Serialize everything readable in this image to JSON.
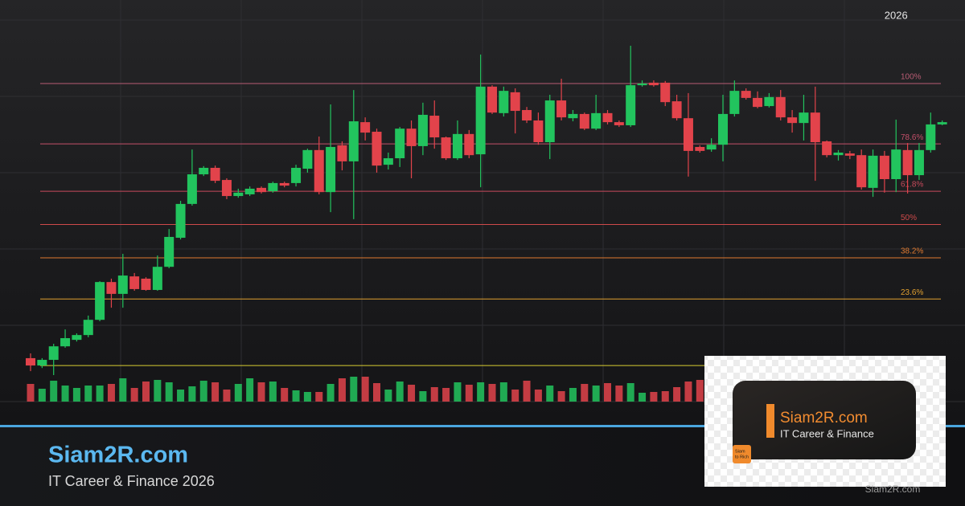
{
  "chart_data": {
    "type": "candlestick",
    "categories": [
      null,
      null,
      null,
      null,
      null,
      null,
      null,
      null,
      null,
      null,
      null,
      null,
      null,
      null,
      null,
      null,
      null,
      null,
      null,
      null,
      null,
      null,
      null,
      null,
      null,
      null,
      null,
      null,
      null,
      null,
      null,
      null,
      null,
      null,
      null,
      null,
      null,
      null,
      null,
      null,
      null,
      null,
      null,
      null,
      null,
      null,
      null,
      null,
      null,
      null,
      null,
      null,
      null,
      null,
      null,
      null,
      null,
      null,
      null,
      null,
      null,
      null,
      null,
      null,
      null,
      null,
      null,
      null,
      null,
      null,
      null,
      null,
      null,
      null,
      null,
      "2026",
      null,
      null,
      null,
      null
    ],
    "open": [
      2.6,
      0,
      2.0,
      6.8,
      9.1,
      10.8,
      16.2,
      29.6,
      25.4,
      31.6,
      30.8,
      26.8,
      35.0,
      45.3,
      57.3,
      67.8,
      70.1,
      65.8,
      60.1,
      60.7,
      63.0,
      61.8,
      64.7,
      64.7,
      69.8,
      76.4,
      61.5,
      78.1,
      72.4,
      86.3,
      82.9,
      71.2,
      73.5,
      84.0,
      77.8,
      88.6,
      80.9,
      73.5,
      82.1,
      74.9,
      98.9,
      89.5,
      96.9,
      90.6,
      86.9,
      79.2,
      94.0,
      87.7,
      89.2,
      84.0,
      89.5,
      86.3,
      85.2,
      99.4,
      100.3,
      100.3,
      93.7,
      87.7,
      77.5,
      76.6,
      78.3,
      89.2,
      97.4,
      94.9,
      92.0,
      95.2,
      88.0,
      86.0,
      89.7,
      79.5,
      74.6,
      75.2,
      74.6,
      63.0,
      74.4,
      66.1,
      76.4,
      67.5,
      76.4,
      85.5
    ],
    "high": [
      4.3,
      2.6,
      7.7,
      12.8,
      11.4,
      17.7,
      29.9,
      30.8,
      39.6,
      32.8,
      31.3,
      39.0,
      48.4,
      58.4,
      76.6,
      70.7,
      70.9,
      66.4,
      62.7,
      63.5,
      63.5,
      65.2,
      65.2,
      71.2,
      76.9,
      81.2,
      92.6,
      79.5,
      97.7,
      88.0,
      84.0,
      75.5,
      84.6,
      86.9,
      93.2,
      94.0,
      81.2,
      86.9,
      83.5,
      110.3,
      99.4,
      98.9,
      98.3,
      91.7,
      89.7,
      96.0,
      101.7,
      90.6,
      89.7,
      96.0,
      90.6,
      86.9,
      113.4,
      101.1,
      101.1,
      100.9,
      96.0,
      96.6,
      78.1,
      80.6,
      96.0,
      101.1,
      98.3,
      97.2,
      96.6,
      97.7,
      90.6,
      96.0,
      98.9,
      79.8,
      76.4,
      76.1,
      76.6,
      76.6,
      76.1,
      87.2,
      78.9,
      78.9,
      89.7,
      86.9
    ],
    "low": [
      -2.0,
      -0.9,
      -3.4,
      6.3,
      8.5,
      10.0,
      15.7,
      20.5,
      20.5,
      26.5,
      26.5,
      26.5,
      34.5,
      44.7,
      56.7,
      67.2,
      64.7,
      59.0,
      59.5,
      60.1,
      61.0,
      61.3,
      63.2,
      63.5,
      68.4,
      60.7,
      54.4,
      69.2,
      51.9,
      79.8,
      68.4,
      69.5,
      70.4,
      66.4,
      74.6,
      76.9,
      72.9,
      72.9,
      73.5,
      63.2,
      89.2,
      88.3,
      82.3,
      86.0,
      78.3,
      73.2,
      86.9,
      86.6,
      83.5,
      83.5,
      85.5,
      84.6,
      84.6,
      98.9,
      98.9,
      92.0,
      86.9,
      67.0,
      75.5,
      75.8,
      72.4,
      88.3,
      94.3,
      91.2,
      91.5,
      86.9,
      82.6,
      79.8,
      65.5,
      73.8,
      72.7,
      73.2,
      62.4,
      59.8,
      61.3,
      61.5,
      61.0,
      65.8,
      75.5,
      85.2
    ],
    "close": [
      0,
      2.0,
      6.8,
      9.7,
      10.8,
      16.2,
      29.6,
      25.4,
      31.9,
      27.1,
      26.8,
      35.0,
      45.6,
      57.3,
      67.8,
      70.1,
      65.5,
      60.1,
      61.3,
      62.7,
      61.5,
      64.7,
      63.8,
      70.1,
      76.4,
      61.5,
      77.5,
      72.4,
      86.6,
      82.6,
      70.9,
      73.5,
      84.0,
      77.8,
      88.9,
      80.9,
      73.5,
      82.1,
      74.6,
      98.9,
      89.7,
      97.4,
      90.3,
      86.9,
      79.2,
      94.0,
      88.0,
      89.2,
      84.0,
      89.5,
      86.3,
      85.2,
      99.4,
      100.0,
      99.4,
      93.4,
      87.7,
      76.1,
      76.1,
      78.3,
      89.2,
      97.4,
      94.9,
      91.7,
      95.2,
      88.0,
      86.0,
      89.7,
      79.2,
      74.6,
      75.5,
      74.4,
      63.2,
      74.4,
      66.1,
      76.6,
      67.5,
      76.4,
      85.5,
      86.3
    ],
    "volume": [
      22,
      16,
      26,
      20,
      17,
      20,
      20,
      22,
      29,
      17,
      25,
      27,
      24,
      15,
      19,
      26,
      24,
      15,
      22,
      29,
      24,
      25,
      17,
      14,
      12,
      12,
      22,
      29,
      31,
      31,
      23,
      15,
      25,
      21,
      13,
      18,
      17,
      24,
      21,
      24,
      22,
      24,
      15,
      26,
      15,
      20,
      13,
      17,
      22,
      20,
      23,
      20,
      23,
      11,
      12,
      13,
      18,
      25,
      27,
      null,
      null,
      null,
      null,
      null,
      null,
      null,
      null,
      null,
      null,
      null,
      null,
      null,
      null,
      null,
      null,
      null,
      null,
      null,
      null,
      null
    ],
    "up_color": "#22c45e",
    "down_color": "#e2434b",
    "ylim": [
      -12.8,
      122.5
    ],
    "volume_lim": [
      0,
      40
    ],
    "fib_levels": [
      {
        "value": 100,
        "label": "100%"
      },
      {
        "value": 78.6,
        "label": "78.6%"
      },
      {
        "value": 61.8,
        "label": "61.8%"
      },
      {
        "value": 50,
        "label": "50%"
      },
      {
        "value": 38.2,
        "label": "38.2%"
      },
      {
        "value": 23.6,
        "label": "23.6%"
      },
      {
        "value": 0,
        "label": null
      }
    ],
    "fib_colors": [
      "#b85c74",
      "#c4506a",
      "#c84a5c",
      "#cf4a4a",
      "#e07a30",
      "#e0a030",
      "#d8cc30"
    ]
  },
  "footer": {
    "title": "Siam2R.com",
    "subtitle": "IT Career & Finance 2026"
  },
  "logo": {
    "title": "Siam2R.com",
    "subtitle": "IT Career & Finance",
    "badge": [
      "Siam",
      "to Rich"
    ]
  },
  "watermark": "Siam2R.com"
}
